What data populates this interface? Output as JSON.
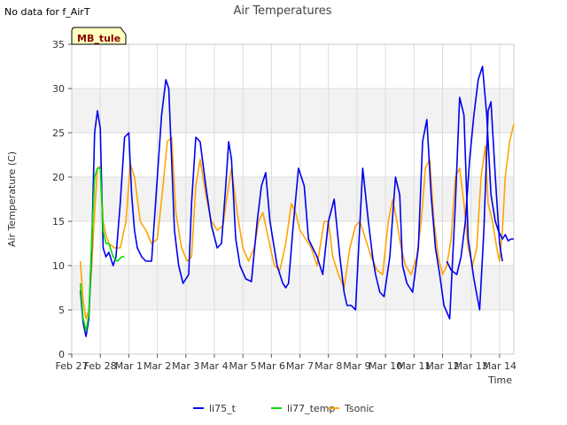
{
  "note": "No data for f_AirT",
  "badge": "MB_tule",
  "colors": {
    "li75_t": "#0000ee",
    "li77_temp": "#00dd00",
    "Tsonic": "#ffa500",
    "band": "#f2f2f2",
    "grid": "#dcdcdc"
  },
  "chart_data": {
    "type": "line",
    "title": "Air Temperatures",
    "xlabel": "Time",
    "ylabel": "Air Temperature (C)",
    "ylim": [
      0,
      35
    ],
    "yticks": [
      0,
      5,
      10,
      15,
      20,
      25,
      30,
      35
    ],
    "xlim": [
      0,
      15.5
    ],
    "xtick_labels": [
      "Feb 27",
      "Feb 28",
      "Mar 1",
      "Mar 2",
      "Mar 3",
      "Mar 4",
      "Mar 5",
      "Mar 6",
      "Mar 7",
      "Mar 8",
      "Mar 9",
      "Mar 10",
      "Mar 11",
      "Mar 12",
      "Mar 13",
      "Mar 14"
    ],
    "legend_position": "bottom",
    "grid": true,
    "series": [
      {
        "name": "li75_t",
        "color": "#0000ee",
        "x": [
          0.3,
          0.4,
          0.5,
          0.6,
          0.7,
          0.8,
          0.9,
          1.0,
          1.1,
          1.2,
          1.3,
          1.45,
          1.55,
          1.7,
          1.85,
          2.0,
          2.1,
          2.2,
          2.3,
          2.45,
          2.6,
          2.8,
          3.0,
          3.15,
          3.3,
          3.4,
          3.5,
          3.6,
          3.75,
          3.9,
          4.0,
          4.1,
          4.2,
          4.35,
          4.5,
          4.7,
          4.9,
          5.1,
          5.25,
          5.4,
          5.5,
          5.6,
          5.75,
          5.9,
          6.1,
          6.3,
          6.5,
          6.65,
          6.8,
          6.95,
          7.2,
          7.4,
          7.5,
          7.6,
          7.75,
          7.95,
          8.15,
          8.3,
          8.45,
          8.6,
          8.8,
          9.0,
          9.2,
          9.4,
          9.55,
          9.65,
          9.8,
          9.95,
          10.2,
          10.4,
          10.55,
          10.65,
          10.8,
          10.95,
          11.15,
          11.35,
          11.5,
          11.6,
          11.75,
          11.95,
          12.15,
          12.3,
          12.45,
          12.6,
          12.75,
          12.9,
          13.05,
          13.25,
          13.45,
          13.6,
          13.75,
          13.9,
          14.1,
          14.3,
          14.45,
          14.6,
          14.7,
          14.85,
          15.0,
          15.1
        ],
        "y": [
          7.2,
          3.5,
          2.0,
          4.0,
          12.0,
          25.0,
          27.5,
          25.5,
          12.0,
          11.0,
          11.5,
          10.0,
          11.0,
          17.0,
          24.5,
          25.0,
          18.0,
          14.0,
          12.0,
          11.0,
          10.5,
          10.5,
          20.0,
          27.0,
          31.0,
          30.0,
          22.0,
          14.0,
          10.0,
          8.0,
          8.5,
          9.0,
          17.0,
          24.5,
          24.0,
          19.0,
          14.5,
          12.0,
          12.5,
          19.0,
          24.0,
          22.0,
          13.0,
          10.0,
          8.5,
          8.2,
          15.0,
          19.0,
          20.5,
          15.0,
          10.0,
          8.0,
          7.5,
          8.0,
          14.0,
          21.0,
          19.0,
          13.0,
          12.0,
          11.0,
          9.0,
          15.0,
          17.5,
          11.0,
          7.0,
          5.5,
          5.5,
          5.0,
          21.0,
          15.0,
          11.0,
          9.0,
          7.0,
          6.5,
          11.0,
          20.0,
          18.0,
          10.0,
          8.0,
          7.0,
          12.0,
          24.0,
          26.5,
          18.0,
          12.0,
          9.0,
          5.5,
          4.0,
          17.0,
          29.0,
          27.0,
          13.0,
          8.5,
          5.0,
          14.0,
          27.5,
          28.5,
          20.0,
          12.5,
          10.5
        ],
        "x2": [
          13.15,
          13.3,
          13.5,
          13.65,
          13.8,
          13.95,
          14.1,
          14.25,
          14.4,
          14.55,
          14.7,
          14.85,
          14.95,
          15.1,
          15.2,
          15.3,
          15.4,
          15.5
        ],
        "y2": [
          10.5,
          9.5,
          9.0,
          11.0,
          15.0,
          22.0,
          27.0,
          31.0,
          32.5,
          27.0,
          18.0,
          15.0,
          14.0,
          13.0,
          13.5,
          12.8,
          13.0,
          13.0
        ]
      },
      {
        "name": "li77_temp",
        "color": "#00dd00",
        "x": [
          0.3,
          0.4,
          0.5,
          0.6,
          0.7,
          0.8,
          0.9,
          1.0,
          1.1,
          1.2,
          1.3,
          1.45,
          1.6,
          1.75,
          1.85
        ],
        "y": [
          8.0,
          4.0,
          2.6,
          4.5,
          13.0,
          20.0,
          21.0,
          21.0,
          14.0,
          12.5,
          12.5,
          11.0,
          10.5,
          11.0,
          11.0
        ]
      },
      {
        "name": "Tsonic",
        "color": "#ffa500",
        "x": [
          0.3,
          0.4,
          0.5,
          0.6,
          0.7,
          0.8,
          0.9,
          1.0,
          1.1,
          1.2,
          1.3,
          1.5,
          1.7,
          1.9,
          2.05,
          2.2,
          2.4,
          2.6,
          2.8,
          3.0,
          3.2,
          3.35,
          3.5,
          3.65,
          3.85,
          4.05,
          4.2,
          4.35,
          4.5,
          4.7,
          4.9,
          5.1,
          5.3,
          5.45,
          5.6,
          5.8,
          6.0,
          6.2,
          6.4,
          6.55,
          6.7,
          6.9,
          7.1,
          7.3,
          7.5,
          7.7,
          7.85,
          8.0,
          8.2,
          8.4,
          8.6,
          8.85,
          9.0,
          9.15,
          9.35,
          9.55,
          9.75,
          9.95,
          10.1,
          10.3,
          10.5,
          10.7,
          10.9,
          11.1,
          11.25,
          11.4,
          11.55,
          11.7,
          11.9,
          12.1,
          12.25,
          12.4,
          12.55,
          12.7,
          12.85,
          13.0,
          13.15,
          13.3,
          13.45,
          13.6,
          13.75,
          13.9,
          14.05,
          14.2,
          14.35,
          14.5,
          14.6,
          14.75,
          14.9,
          15.0,
          15.1,
          15.2,
          15.35,
          15.5
        ],
        "y": [
          10.5,
          6.0,
          4.0,
          5.0,
          10.0,
          16.0,
          21.0,
          21.2,
          15.0,
          13.5,
          12.5,
          12.0,
          12.0,
          15.0,
          21.5,
          20.0,
          15.0,
          14.0,
          12.5,
          13.0,
          19.0,
          24.0,
          24.5,
          16.0,
          12.0,
          10.5,
          11.0,
          19.0,
          22.0,
          18.0,
          15.0,
          14.0,
          14.5,
          18.0,
          21.0,
          16.0,
          12.0,
          10.5,
          12.0,
          15.0,
          16.0,
          13.0,
          10.0,
          9.5,
          12.5,
          17.0,
          16.0,
          14.0,
          13.0,
          12.0,
          10.0,
          15.0,
          15.0,
          11.0,
          9.0,
          7.5,
          12.0,
          14.5,
          15.0,
          13.0,
          11.0,
          9.5,
          9.0,
          15.0,
          17.5,
          15.0,
          12.0,
          10.0,
          9.0,
          11.0,
          15.0,
          21.0,
          22.0,
          15.0,
          11.0,
          9.0,
          10.0,
          13.0,
          20.0,
          21.0,
          17.0,
          12.0,
          10.0,
          12.0,
          20.0,
          23.5,
          17.0,
          15.0,
          12.0,
          10.5,
          14.0,
          20.0,
          24.0,
          26.0
        ]
      }
    ]
  },
  "legend": {
    "items": [
      "li75_t",
      "li77_temp",
      "Tsonic"
    ]
  }
}
